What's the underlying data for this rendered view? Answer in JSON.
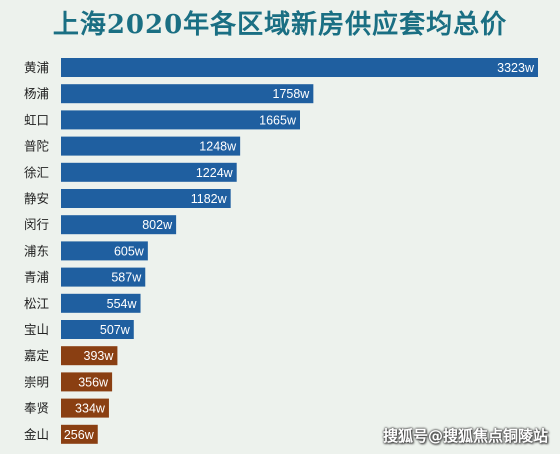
{
  "chart_data": {
    "type": "bar",
    "orientation": "horizontal",
    "title": "上海2020年各区域新房供应套均总价",
    "categories": [
      "黄浦",
      "杨浦",
      "虹口",
      "普陀",
      "徐汇",
      "静安",
      "闵行",
      "浦东",
      "青浦",
      "松江",
      "宝山",
      "嘉定",
      "崇明",
      "奉贤",
      "金山"
    ],
    "values": [
      3323,
      1758,
      1665,
      1248,
      1224,
      1182,
      802,
      605,
      587,
      554,
      507,
      393,
      356,
      334,
      256
    ],
    "value_labels": [
      "3323w",
      "1758w",
      "1665w",
      "1248w",
      "1224w",
      "1182w",
      "802w",
      "605w",
      "587w",
      "554w",
      "507w",
      "393w",
      "356w",
      "334w",
      "256w"
    ],
    "unit": "w",
    "xlim": [
      0,
      3323
    ],
    "grid": false,
    "colors": {
      "blue": "#1f5fa0",
      "brown": "#8a3f12",
      "title": "#1a6f83"
    },
    "bar_color_keys": [
      "blue",
      "blue",
      "blue",
      "blue",
      "blue",
      "blue",
      "blue",
      "blue",
      "blue",
      "blue",
      "blue",
      "brown",
      "brown",
      "brown",
      "brown"
    ]
  },
  "watermark": "搜狐号@搜狐焦点铜陵站"
}
